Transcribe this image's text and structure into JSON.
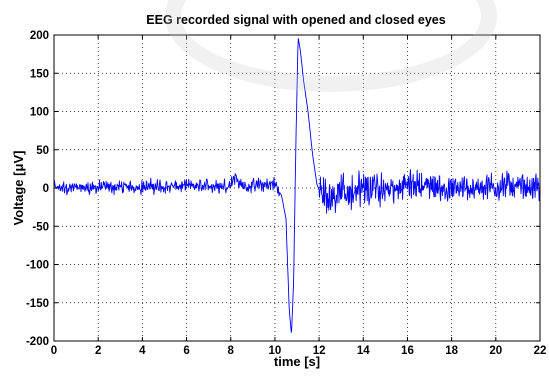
{
  "chart_data": {
    "type": "line",
    "title": "EEG recorded signal with opened and closed eyes",
    "xlabel": "time [s]",
    "ylabel_prefix": "Voltage [",
    "ylabel_unit": "μV",
    "ylabel_suffix": "]",
    "xlim": [
      0,
      22
    ],
    "ylim": [
      -200,
      200
    ],
    "xticks": [
      0,
      2,
      4,
      6,
      8,
      10,
      12,
      14,
      16,
      18,
      20,
      22
    ],
    "yticks": [
      -200,
      -150,
      -100,
      -50,
      0,
      50,
      100,
      150,
      200
    ],
    "grid": true,
    "series": [
      {
        "color": "#0000ff",
        "sample_step": 0.02,
        "noise_bands": [
          {
            "x_from": 0.0,
            "x_to": 8.0,
            "amplitude": 9
          },
          {
            "x_from": 8.0,
            "x_to": 10.2,
            "amplitude": 10
          },
          {
            "x_from": 12.0,
            "x_to": 15.0,
            "amplitude": 25
          },
          {
            "x_from": 15.0,
            "x_to": 22.0,
            "amplitude": 18
          }
        ],
        "key_points": [
          {
            "x": 0.0,
            "y": 0
          },
          {
            "x": 7.9,
            "y": 3
          },
          {
            "x": 8.2,
            "y": 15
          },
          {
            "x": 8.5,
            "y": 2
          },
          {
            "x": 10.0,
            "y": 5
          },
          {
            "x": 10.3,
            "y": -10
          },
          {
            "x": 10.5,
            "y": -40
          },
          {
            "x": 10.65,
            "y": -160
          },
          {
            "x": 10.75,
            "y": -192
          },
          {
            "x": 10.85,
            "y": -120
          },
          {
            "x": 10.95,
            "y": 60
          },
          {
            "x": 11.05,
            "y": 197
          },
          {
            "x": 11.15,
            "y": 180
          },
          {
            "x": 11.3,
            "y": 140
          },
          {
            "x": 11.5,
            "y": 100
          },
          {
            "x": 11.7,
            "y": 45
          },
          {
            "x": 11.9,
            "y": 5
          },
          {
            "x": 12.1,
            "y": -10
          },
          {
            "x": 13.5,
            "y": -5
          },
          {
            "x": 15.0,
            "y": 0
          },
          {
            "x": 16.5,
            "y": 5
          },
          {
            "x": 18.0,
            "y": -2
          },
          {
            "x": 20.5,
            "y": 3
          },
          {
            "x": 22.0,
            "y": 0
          }
        ]
      }
    ]
  }
}
